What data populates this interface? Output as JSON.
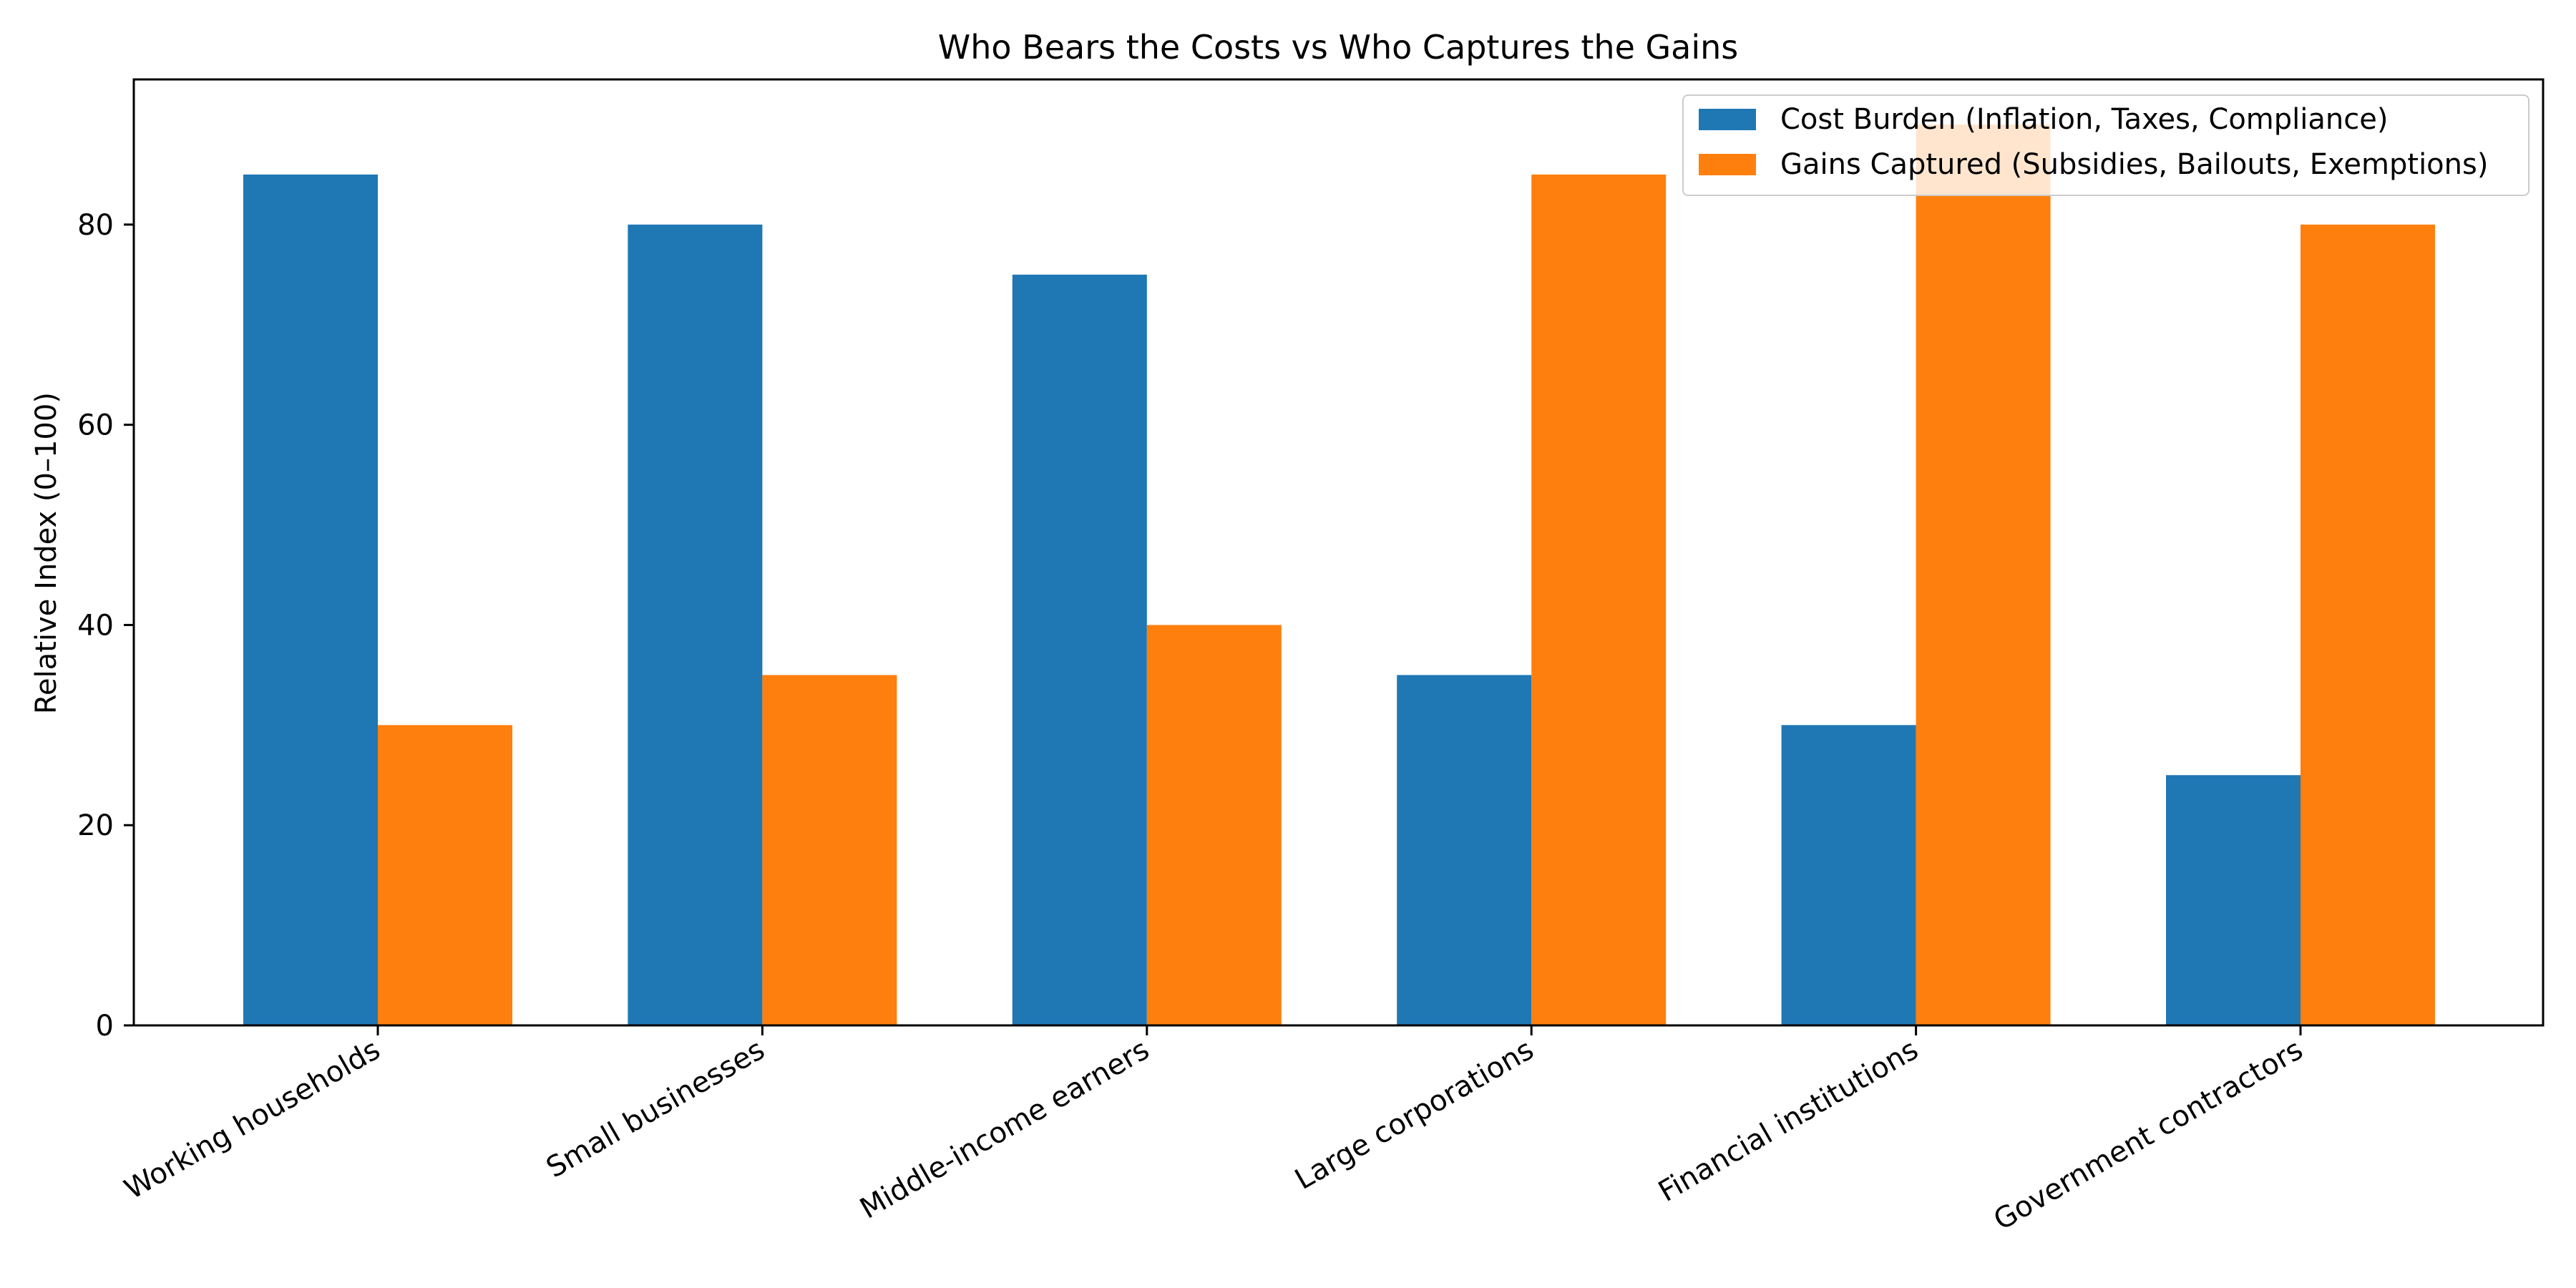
{
  "chart_data": {
    "type": "bar",
    "title": "Who Bears the Costs vs Who Captures the Gains",
    "xlabel": "",
    "ylabel": "Relative Index (0–100)",
    "ylim": [
      0,
      94.5
    ],
    "yticks": [
      0,
      20,
      40,
      60,
      80
    ],
    "grid": false,
    "legend_position": "top-right",
    "categories": [
      "Working households",
      "Small businesses",
      "Middle-income earners",
      "Large corporations",
      "Financial institutions",
      "Government contractors"
    ],
    "series": [
      {
        "name": "Cost Burden (Inflation, Taxes, Compliance)",
        "color": "#1f77b4",
        "values": [
          85,
          80,
          75,
          35,
          30,
          25
        ]
      },
      {
        "name": "Gains Captured (Subsidies, Bailouts, Exemptions)",
        "color": "#ff7f0e",
        "values": [
          30,
          35,
          40,
          85,
          90,
          80
        ]
      }
    ]
  }
}
